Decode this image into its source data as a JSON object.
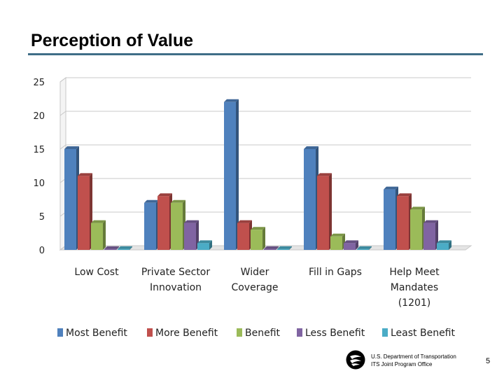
{
  "slide": {
    "title": "Perception of Value",
    "footer_line1": "U.S. Department of Transportation",
    "footer_line2": "ITS Joint Program Office",
    "page_number": "5"
  },
  "chart_data": {
    "type": "bar",
    "title": "",
    "xlabel": "",
    "ylabel": "",
    "ylim": [
      0,
      25
    ],
    "yticks": [
      0,
      5,
      10,
      15,
      20,
      25
    ],
    "grid": true,
    "legend_position": "bottom",
    "categories": [
      [
        "Low Cost"
      ],
      [
        "Private Sector",
        "Innovation"
      ],
      [
        "Wider",
        "Coverage"
      ],
      [
        "Fill in Gaps"
      ],
      [
        "Help Meet",
        "Mandates",
        "(1201)"
      ]
    ],
    "series": [
      {
        "name": "Most Benefit",
        "color": "#4f81bd",
        "values": [
          15,
          7,
          22,
          15,
          9
        ]
      },
      {
        "name": "More Benefit",
        "color": "#c0504d",
        "values": [
          11,
          8,
          4,
          11,
          8
        ]
      },
      {
        "name": "Benefit",
        "color": "#9bbb59",
        "values": [
          4,
          7,
          3,
          2,
          6
        ]
      },
      {
        "name": "Less Benefit",
        "color": "#8064a2",
        "values": [
          0,
          4,
          0,
          1,
          4
        ]
      },
      {
        "name": "Least Benefit",
        "color": "#4bacc6",
        "values": [
          0,
          1,
          0,
          0,
          1
        ]
      }
    ]
  }
}
